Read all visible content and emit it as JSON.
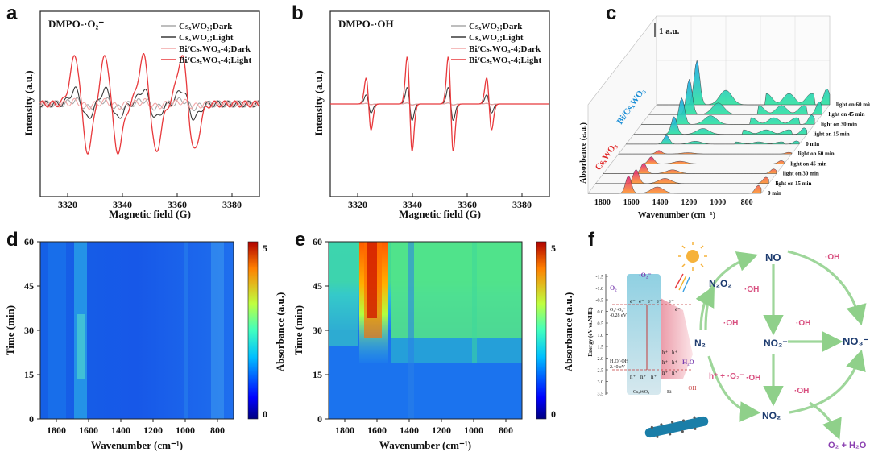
{
  "colors": {
    "dark": "#3a3a3a",
    "grey": "#a8a8a8",
    "pink": "#f2a6a6",
    "red": "#e8393c",
    "cyan": "#2aa8e0",
    "mint": "#2fcf9a",
    "arrow": "#9ed69a",
    "oh": "#d84f7f"
  },
  "chart_data": [
    {
      "panel": "a",
      "type": "line",
      "title": "DMPO-·O₂⁻",
      "xlabel": "Magnetic field (G)",
      "ylabel": "Intensity (a.u.)",
      "xlim": [
        3310,
        3390
      ],
      "xticks": [
        "3320",
        "3340",
        "3360",
        "3380"
      ],
      "series": [
        {
          "name": "CsₓWO₃;Dark",
          "color": "#a8a8a8",
          "amp": 0.08,
          "kind": "o2"
        },
        {
          "name": "CsₓWO₃;Light",
          "color": "#3a3a3a",
          "amp": 0.3,
          "kind": "o2"
        },
        {
          "name": "Bi/CsₓWO₃-4;Dark",
          "color": "#f2a6a6",
          "amp": 0.05,
          "kind": "o2"
        },
        {
          "name": "Bi/CsₓWO₃-4;Light",
          "color": "#e8393c",
          "amp": 1.0,
          "kind": "o2"
        }
      ],
      "lines": [
        3325,
        3336,
        3350,
        3364
      ]
    },
    {
      "panel": "b",
      "type": "line",
      "title": "DMPO-·OH",
      "xlabel": "Magnetic field (G)",
      "ylabel": "Intensity (a.u.)",
      "xlim": [
        3310,
        3390
      ],
      "xticks": [
        "3320",
        "3340",
        "3360",
        "3380"
      ],
      "series": [
        {
          "name": "CsₓWO₃;Dark",
          "color": "#a8a8a8",
          "amp": 0.02,
          "kind": "oh"
        },
        {
          "name": "CsₓWO₃;Light",
          "color": "#3a3a3a",
          "amp": 0.35,
          "kind": "oh"
        },
        {
          "name": "Bi/CsₓWO₃-4;Dark",
          "color": "#f2a6a6",
          "amp": 0.03,
          "kind": "oh"
        },
        {
          "name": "Bi/CsₓWO₃-4;Light",
          "color": "#e8393c",
          "amp": 1.0,
          "kind": "oh"
        }
      ],
      "lines": [
        3324,
        3339,
        3354,
        3368
      ]
    },
    {
      "panel": "c",
      "type": "area",
      "xlabel": "Wavenumber (cm⁻¹)",
      "ylabel": "Absorbance (a.u.)",
      "scale": "1 a.u.",
      "xticks": [
        "1800",
        "1600",
        "1400",
        "1200",
        "1000",
        "800"
      ],
      "groups": [
        "Bi/CsₓWO₃",
        "CsₓWO₃"
      ],
      "traces": [
        "light on 60 min",
        "light on 45 min",
        "light on 30 min",
        "light on 15 min",
        "0 min",
        "light on 60 min",
        "light on 45 min",
        "light on 30 min",
        "light on 15 min",
        "0 min"
      ]
    },
    {
      "panel": "d",
      "type": "heatmap",
      "xlabel": "Wavenumber (cm⁻¹)",
      "ylabel": "Time (min)",
      "cbar": "Absorbance (a.u.)",
      "xticks": [
        "1800",
        "1600",
        "1400",
        "1200",
        "1000",
        "800"
      ],
      "yticks": [
        "0",
        "15",
        "30",
        "45",
        "60"
      ],
      "crange": [
        "0",
        "5"
      ]
    },
    {
      "panel": "e",
      "type": "heatmap",
      "xlabel": "Wavenumber (cm⁻¹)",
      "ylabel": "Time (min)",
      "cbar": "Absorbance (a.u.)",
      "xticks": [
        "1800",
        "1600",
        "1400",
        "1200",
        "1000",
        "800"
      ],
      "yticks": [
        "0",
        "15",
        "30",
        "45",
        "60"
      ],
      "crange": [
        "0",
        "5"
      ]
    }
  ],
  "mechanism": {
    "panel": "f",
    "ylabel": "Energy (eV vs.NHE)",
    "eticks": [
      "-1.5",
      "-1.0",
      "-0.5",
      "0.0",
      "0.5",
      "1.0",
      "1.5",
      "2.0",
      "2.5",
      "3.0",
      "3.5"
    ],
    "materials": [
      "CsₓWO₃",
      "Bi"
    ],
    "o2": "O₂",
    "o2rad": "·O₂⁻",
    "o2pot_a": "O₂/·O₂⁻",
    "o2pot_b": "-0.28 eV",
    "ohpot_a": "H₂O/·OH",
    "ohpot_b": "2.40 eV",
    "h2o": "H₂O",
    "ohrad": "·OH",
    "electron": "e⁻",
    "hole": "h⁺",
    "species": {
      "no": "NO",
      "n2o2": "N₂O₂",
      "n2": "N₂",
      "no2m": "NO₂⁻",
      "no3m": "NO₃⁻",
      "no2": "NO₂",
      "o2h2o": "O₂ + H₂O"
    },
    "oh": "·OH",
    "hplus": "h⁺ + ·O₂⁻"
  }
}
